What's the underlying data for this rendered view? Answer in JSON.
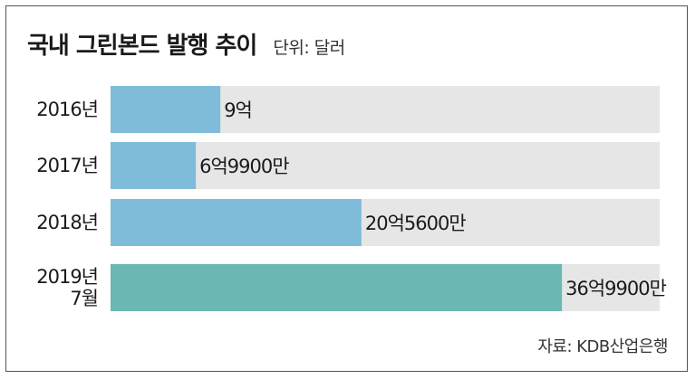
{
  "title": "국내 그린본드 발행 추이",
  "unit": "단위: 달러",
  "source": "자료: KDB산업은행",
  "colors": {
    "track": "#e6e6e6",
    "bar_default": "#7fbcd9",
    "bar_highlight": "#6bb7b4",
    "text": "#1a1a1a"
  },
  "chart_data": {
    "type": "bar",
    "orientation": "horizontal",
    "categories": [
      "2016년",
      "2017년",
      "2018년",
      "2019년\n7월"
    ],
    "values": [
      900000000,
      699000000,
      2056000000,
      3699000000
    ],
    "value_labels": [
      "9억",
      "6억9900만",
      "20억5600만",
      "36억9900만"
    ],
    "highlight_index": 3,
    "xlim": [
      0,
      4500000000
    ],
    "unit": "달러",
    "grid": false,
    "legend": "none"
  }
}
